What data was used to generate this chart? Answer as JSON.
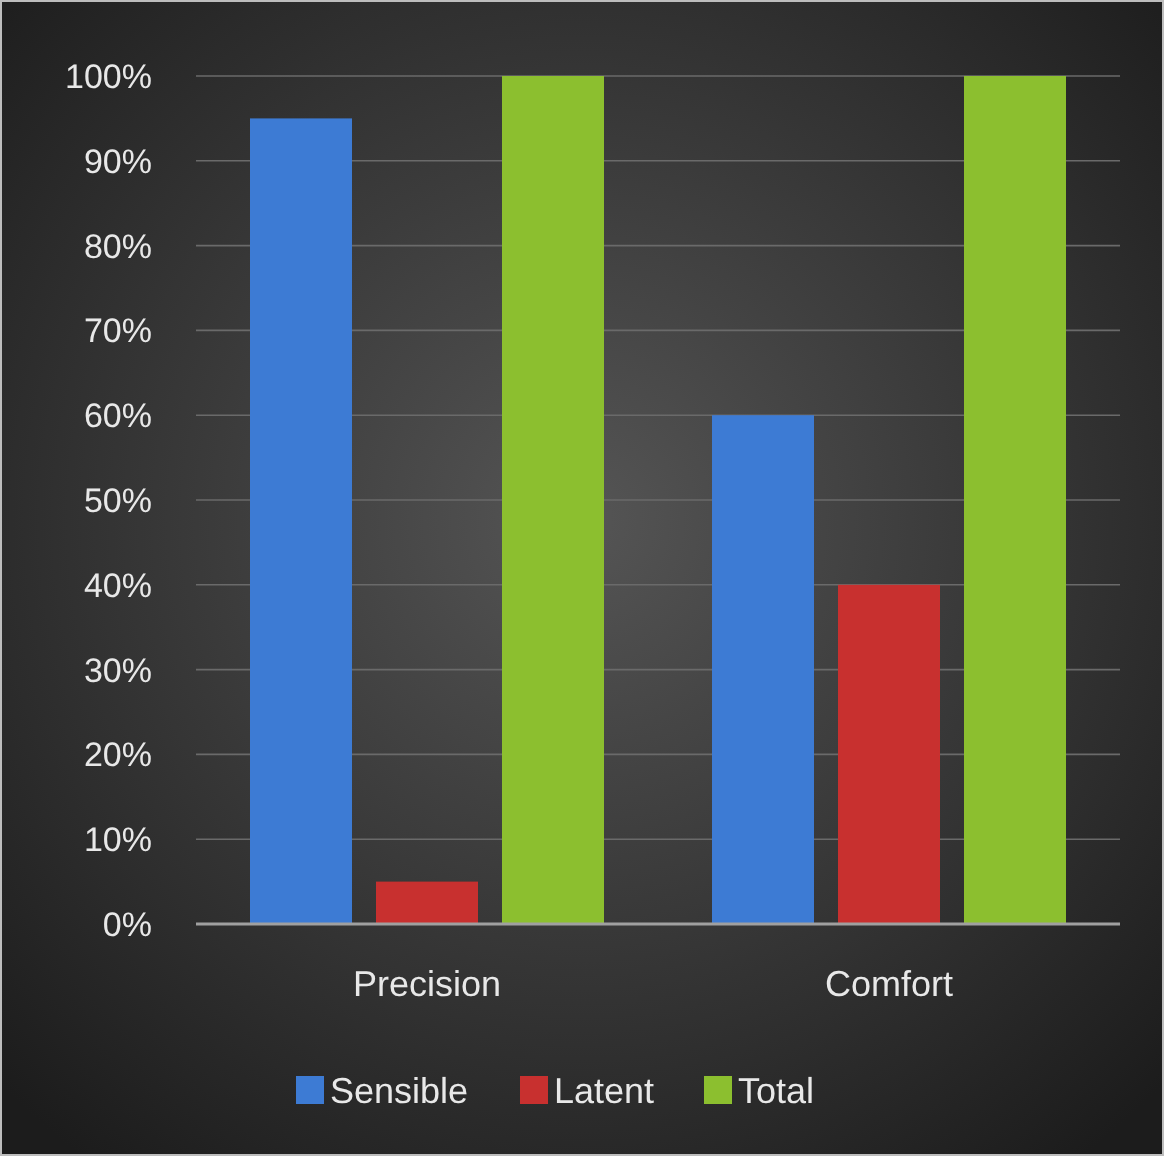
{
  "chart_data": {
    "type": "bar",
    "categories": [
      "Precision",
      "Comfort"
    ],
    "series": [
      {
        "name": "Sensible",
        "color": "#3d7bd4",
        "values": [
          95,
          60
        ]
      },
      {
        "name": "Latent",
        "color": "#c8302f",
        "values": [
          5,
          40
        ]
      },
      {
        "name": "Total",
        "color": "#8cbf2f",
        "values": [
          100,
          100
        ]
      }
    ],
    "ylim": [
      0,
      100
    ],
    "yticks": [
      {
        "value": 0,
        "label": "0%"
      },
      {
        "value": 10,
        "label": "10%"
      },
      {
        "value": 20,
        "label": "20%"
      },
      {
        "value": 30,
        "label": "30%"
      },
      {
        "value": 40,
        "label": "40%"
      },
      {
        "value": 50,
        "label": "50%"
      },
      {
        "value": 60,
        "label": "60%"
      },
      {
        "value": 70,
        "label": "70%"
      },
      {
        "value": 80,
        "label": "80%"
      },
      {
        "value": 90,
        "label": "90%"
      },
      {
        "value": 100,
        "label": "100%"
      }
    ],
    "grid": "y",
    "legend": "bottom"
  }
}
